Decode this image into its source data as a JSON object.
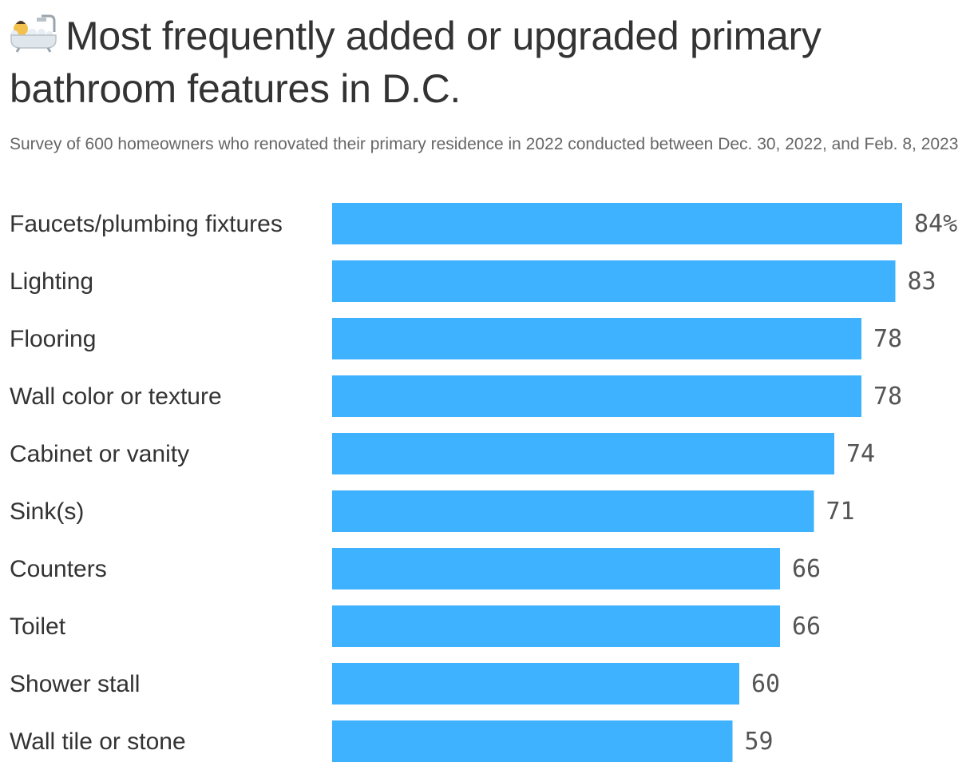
{
  "title": "Most frequently added or upgraded primary bathroom features in D.C.",
  "title_icon": "bathtub-icon",
  "subtitle": "Survey of 600 homeowners who renovated their primary residence in 2022 conducted between Dec. 30, 2022, and Feb. 8, 2023",
  "colors": {
    "bar": "#3eb1ff",
    "title": "#333333",
    "subtitle": "#666666",
    "value": "#555555"
  },
  "chart_data": {
    "type": "bar",
    "orientation": "horizontal",
    "categories": [
      "Faucets/plumbing fixtures",
      "Lighting",
      "Flooring",
      "Wall color or texture",
      "Cabinet or vanity",
      "Sink(s)",
      "Counters",
      "Toilet",
      "Shower stall",
      "Wall tile or stone"
    ],
    "values": [
      84,
      83,
      78,
      78,
      74,
      71,
      66,
      66,
      60,
      59
    ],
    "value_labels": [
      "84%",
      "83",
      "78",
      "78",
      "74",
      "71",
      "66",
      "66",
      "60",
      "59"
    ],
    "unit": "%",
    "xlim": [
      0,
      84
    ],
    "grid": false,
    "legend": "none"
  }
}
